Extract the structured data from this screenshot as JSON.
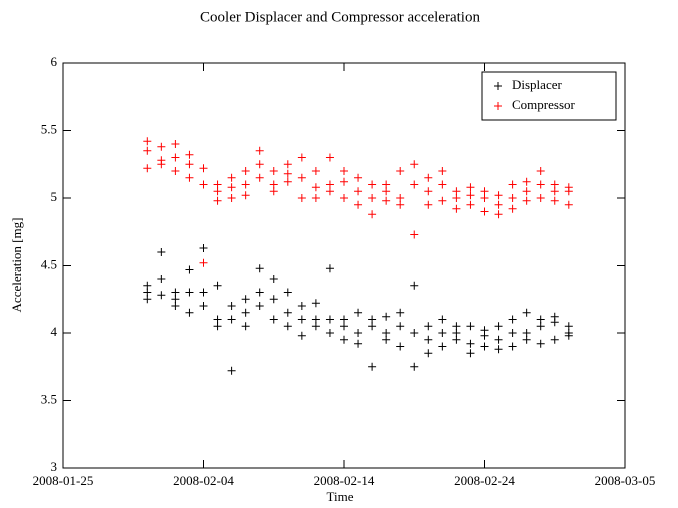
{
  "chart_data": {
    "type": "scatter",
    "title": "Cooler Displacer and Compressor acceleration",
    "x_label": "Time",
    "y_label": "Acceleration [mg]",
    "x": [
      "2008-01-31",
      "2008-01-31",
      "2008-01-31",
      "2008-02-01",
      "2008-02-01",
      "2008-02-01",
      "2008-02-02",
      "2008-02-02",
      "2008-02-02",
      "2008-02-03",
      "2008-02-03",
      "2008-02-03",
      "2008-02-04",
      "2008-02-04",
      "2008-02-04",
      "2008-02-05",
      "2008-02-05",
      "2008-02-05",
      "2008-02-06",
      "2008-02-06",
      "2008-02-06",
      "2008-02-07",
      "2008-02-07",
      "2008-02-07",
      "2008-02-08",
      "2008-02-08",
      "2008-02-08",
      "2008-02-09",
      "2008-02-09",
      "2008-02-09",
      "2008-02-10",
      "2008-02-10",
      "2008-02-10",
      "2008-02-11",
      "2008-02-11",
      "2008-02-11",
      "2008-02-12",
      "2008-02-12",
      "2008-02-12",
      "2008-02-13",
      "2008-02-13",
      "2008-02-13",
      "2008-02-14",
      "2008-02-14",
      "2008-02-14",
      "2008-02-15",
      "2008-02-15",
      "2008-02-15",
      "2008-02-16",
      "2008-02-16",
      "2008-02-16",
      "2008-02-17",
      "2008-02-17",
      "2008-02-17",
      "2008-02-18",
      "2008-02-18",
      "2008-02-18",
      "2008-02-19",
      "2008-02-19",
      "2008-02-19",
      "2008-02-20",
      "2008-02-20",
      "2008-02-20",
      "2008-02-21",
      "2008-02-21",
      "2008-02-21",
      "2008-02-22",
      "2008-02-22",
      "2008-02-22",
      "2008-02-23",
      "2008-02-23",
      "2008-02-23",
      "2008-02-24",
      "2008-02-24",
      "2008-02-24",
      "2008-02-25",
      "2008-02-25",
      "2008-02-25",
      "2008-02-26",
      "2008-02-26",
      "2008-02-26",
      "2008-02-27",
      "2008-02-27",
      "2008-02-27",
      "2008-02-28",
      "2008-02-28",
      "2008-02-28",
      "2008-02-29",
      "2008-02-29",
      "2008-02-29",
      "2008-03-01",
      "2008-03-01",
      "2008-03-01"
    ],
    "series": [
      {
        "name": "Displacer",
        "color": "#000000",
        "values": [
          4.25,
          4.3,
          4.35,
          4.4,
          4.28,
          4.6,
          4.3,
          4.2,
          4.25,
          4.47,
          4.3,
          4.15,
          4.63,
          4.2,
          4.3,
          4.05,
          4.35,
          4.1,
          3.72,
          4.2,
          4.1,
          4.15,
          4.05,
          4.25,
          4.3,
          4.48,
          4.2,
          4.25,
          4.1,
          4.4,
          4.3,
          4.15,
          4.05,
          4.2,
          3.98,
          4.1,
          4.1,
          4.05,
          4.22,
          4.48,
          4.1,
          4.0,
          4.1,
          4.05,
          3.95,
          4.15,
          4.0,
          3.92,
          3.75,
          4.05,
          4.1,
          4.0,
          3.95,
          4.12,
          4.05,
          3.9,
          4.15,
          4.35,
          3.75,
          4.0,
          4.05,
          3.95,
          3.85,
          4.0,
          4.1,
          3.9,
          3.95,
          4.05,
          4.0,
          3.92,
          3.85,
          4.05,
          3.98,
          3.9,
          4.02,
          3.95,
          4.05,
          3.88,
          3.9,
          4.0,
          4.1,
          4.15,
          3.95,
          4.0,
          4.1,
          3.92,
          4.05,
          4.12,
          3.95,
          4.08,
          4.0,
          4.05,
          3.98
        ]
      },
      {
        "name": "Compressor",
        "color": "#ff0000",
        "values": [
          5.22,
          5.35,
          5.42,
          5.28,
          5.38,
          5.25,
          5.4,
          5.3,
          5.2,
          5.32,
          5.15,
          5.25,
          5.1,
          5.22,
          4.52,
          5.05,
          4.98,
          5.1,
          5.0,
          5.15,
          5.08,
          5.2,
          5.1,
          5.02,
          5.35,
          5.15,
          5.25,
          5.1,
          5.2,
          5.05,
          5.18,
          5.25,
          5.12,
          5.0,
          5.15,
          5.3,
          5.08,
          5.2,
          5.0,
          5.3,
          5.1,
          5.05,
          5.12,
          5.0,
          5.2,
          5.05,
          5.15,
          4.95,
          5.0,
          4.88,
          5.1,
          5.1,
          5.05,
          4.98,
          5.2,
          5.0,
          4.95,
          4.73,
          5.1,
          5.25,
          5.15,
          5.05,
          4.95,
          5.1,
          4.98,
          5.2,
          5.05,
          4.92,
          5.0,
          5.08,
          4.95,
          5.02,
          4.9,
          5.0,
          5.05,
          4.88,
          5.02,
          4.95,
          5.0,
          5.1,
          4.92,
          5.05,
          5.12,
          4.98,
          5.2,
          5.0,
          5.1,
          5.05,
          4.98,
          5.1,
          5.05,
          4.95,
          5.08
        ]
      }
    ],
    "xlim": [
      "2008-01-25",
      "2008-03-05"
    ],
    "xticks": [
      "2008-01-25",
      "2008-02-04",
      "2008-02-14",
      "2008-02-24",
      "2008-03-05"
    ],
    "ylim": [
      3,
      6
    ],
    "yticks": [
      3,
      3.5,
      4,
      4.5,
      5,
      5.5,
      6
    ],
    "legend": "upper right",
    "grid": false
  }
}
